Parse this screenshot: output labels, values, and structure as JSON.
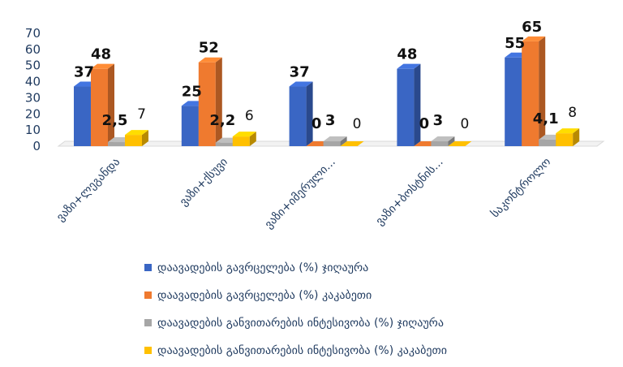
{
  "chart_data": {
    "type": "bar",
    "title": "",
    "xlabel": "",
    "ylabel": "",
    "ylim": [
      0,
      70
    ],
    "yticks": [
      0,
      10,
      20,
      30,
      40,
      50,
      60,
      70
    ],
    "grid": false,
    "legend_position": "bottom",
    "categories": [
      "ვაზი+ლეგანდა",
      "ვაზი+ქსუვი",
      "ვაზი+იმერული...",
      "ვაზი+ბოსტნის...",
      "საკონტროლო"
    ],
    "series": [
      {
        "name": "დაავადების გავრცელება (%) ჯიღაურა",
        "color": "#3a66c4",
        "values": [
          37,
          25,
          37,
          48,
          55
        ],
        "labels": [
          "37",
          "25",
          "37",
          "48",
          "55"
        ],
        "bold": true
      },
      {
        "name": "დაავადების გავრცელება (%) კაკაბეთი",
        "color": "#ef7a2f",
        "values": [
          48,
          52,
          0,
          0,
          65
        ],
        "labels": [
          "48",
          "52",
          "0",
          "0",
          "65"
        ],
        "bold": true
      },
      {
        "name": "დაავადების  განვითარების ინტესივობა (%) ჯიღაურა",
        "color": "#a6a6a6",
        "values": [
          2.5,
          2.2,
          3,
          3,
          4.1
        ],
        "labels": [
          "2,5",
          "2,2",
          "3",
          "3",
          "4,1"
        ],
        "bold": true
      },
      {
        "name": "დაავადების  განვითარების ინტესივობა (%) კაკაბეთი",
        "color": "#ffc000",
        "values": [
          7,
          6,
          0,
          0,
          8
        ],
        "labels": [
          "7",
          "6",
          "0",
          "0",
          "8"
        ],
        "bold": false
      }
    ]
  }
}
